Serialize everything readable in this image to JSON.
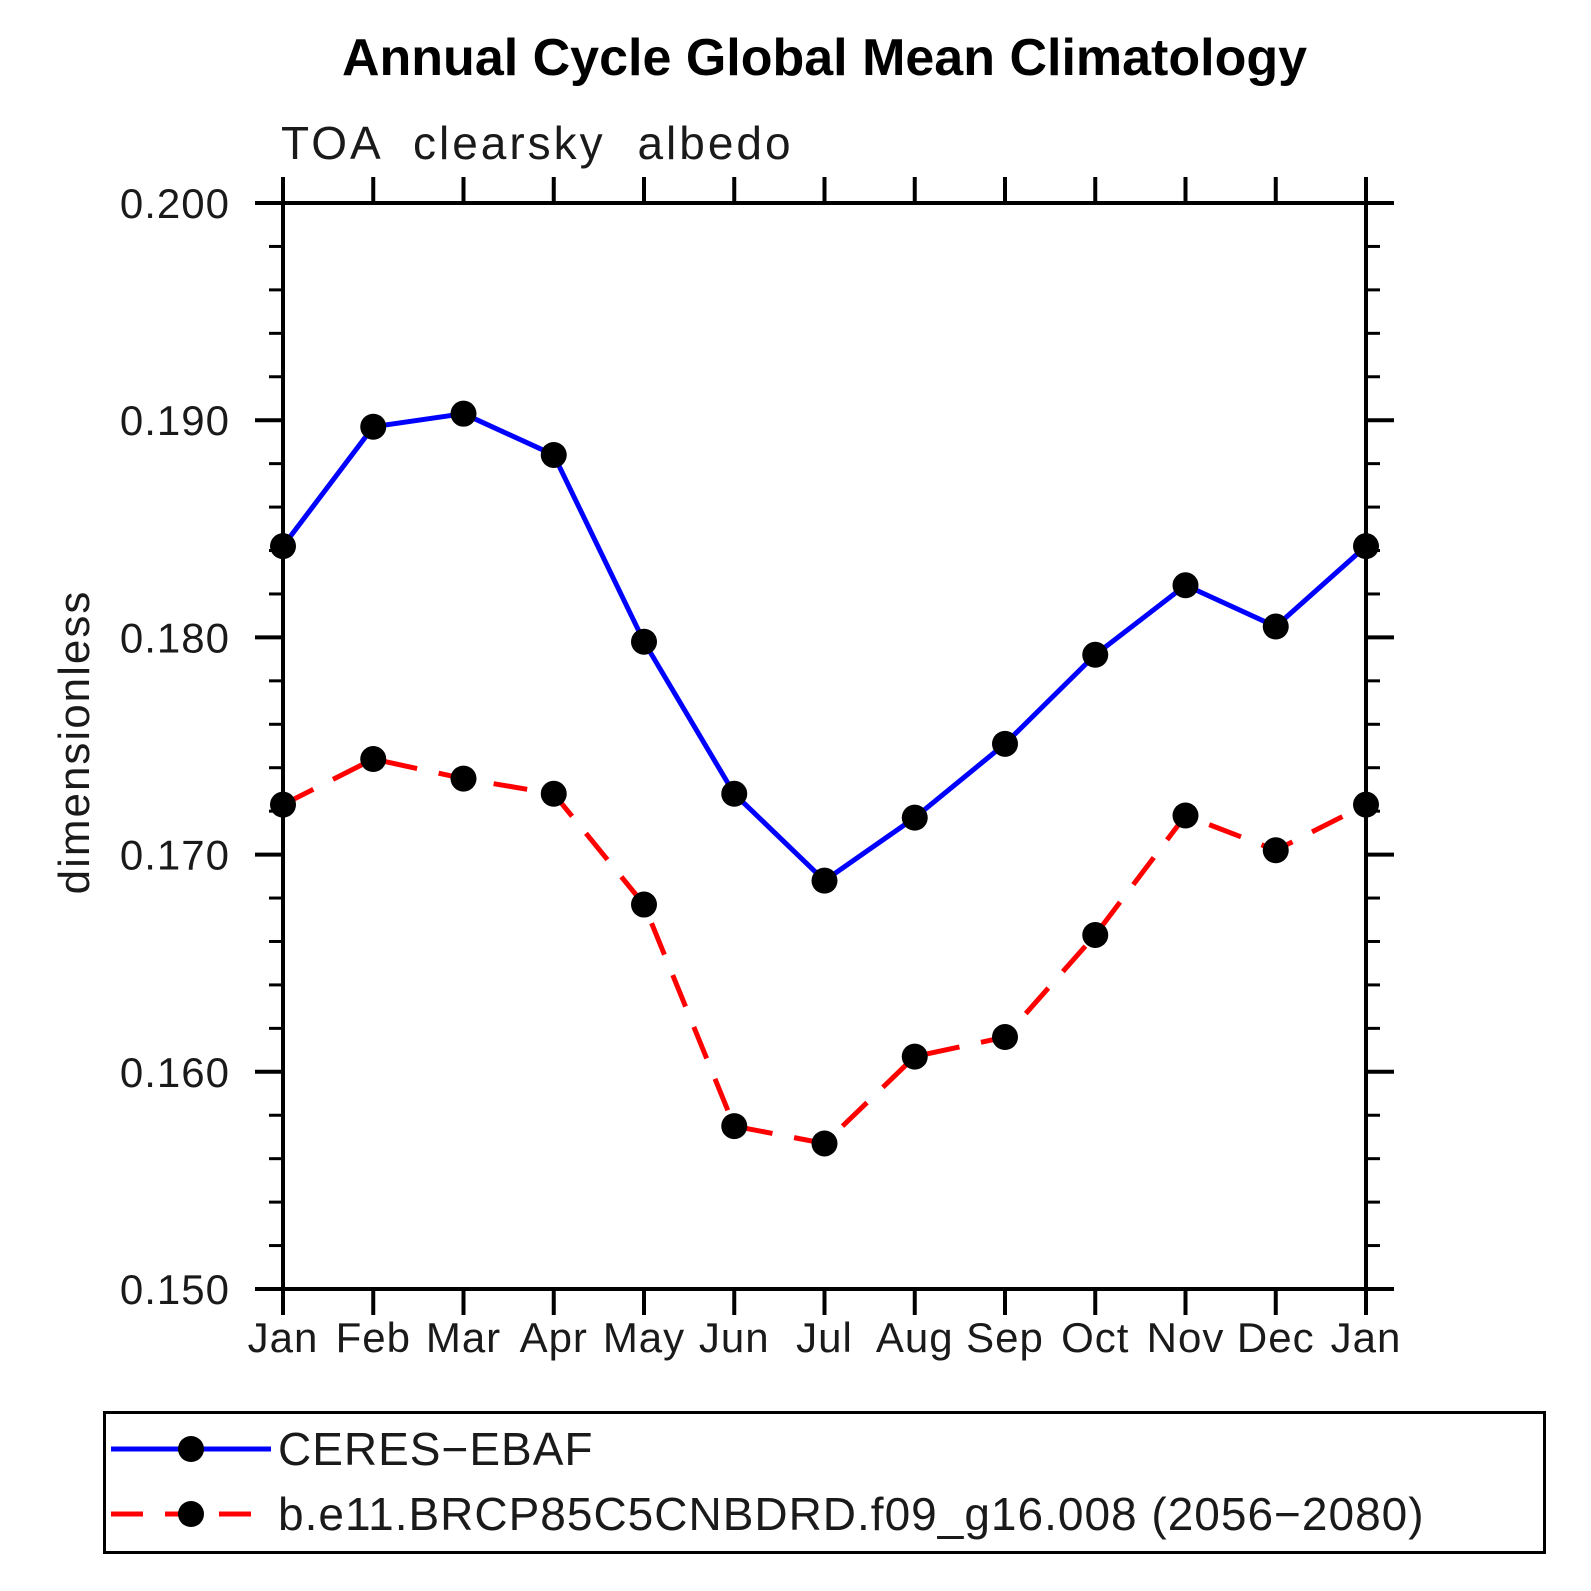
{
  "chart_data": {
    "type": "line",
    "title": "Annual Cycle Global Mean Climatology",
    "subtitle": "TOA clearsky albedo",
    "ylabel": "dimensionless",
    "x_categories": [
      "Jan",
      "Feb",
      "Mar",
      "Apr",
      "May",
      "Jun",
      "Jul",
      "Aug",
      "Sep",
      "Oct",
      "Nov",
      "Dec",
      "Jan"
    ],
    "ylim": [
      0.15,
      0.2
    ],
    "y_major_ticks": [
      0.15,
      0.16,
      0.17,
      0.18,
      0.19,
      0.2
    ],
    "y_tick_labels": [
      "0.150",
      "0.160",
      "0.170",
      "0.180",
      "0.190",
      "0.200"
    ],
    "y_minor_step": 0.002,
    "grid": false,
    "legend_position": "bottom",
    "axis_color": "#000000",
    "series": [
      {
        "name": "CERES−EBAF",
        "color": "#0000ff",
        "style": "solid",
        "marker": "circle",
        "marker_color": "#000000",
        "values": [
          0.1842,
          0.1897,
          0.1903,
          0.1884,
          0.1798,
          0.1728,
          0.1688,
          0.1717,
          0.1751,
          0.1792,
          0.1824,
          0.1805,
          0.1842
        ]
      },
      {
        "name": "b.e11.BRCP85C5CNBDRD.f09_g16.008 (2056−2080)",
        "color": "#ff0000",
        "style": "dashed",
        "marker": "circle",
        "marker_color": "#000000",
        "values": [
          0.1723,
          0.1744,
          0.1735,
          0.1728,
          0.1677,
          0.1575,
          0.1567,
          0.1607,
          0.1616,
          0.1663,
          0.1718,
          0.1702,
          0.1723
        ]
      }
    ]
  }
}
